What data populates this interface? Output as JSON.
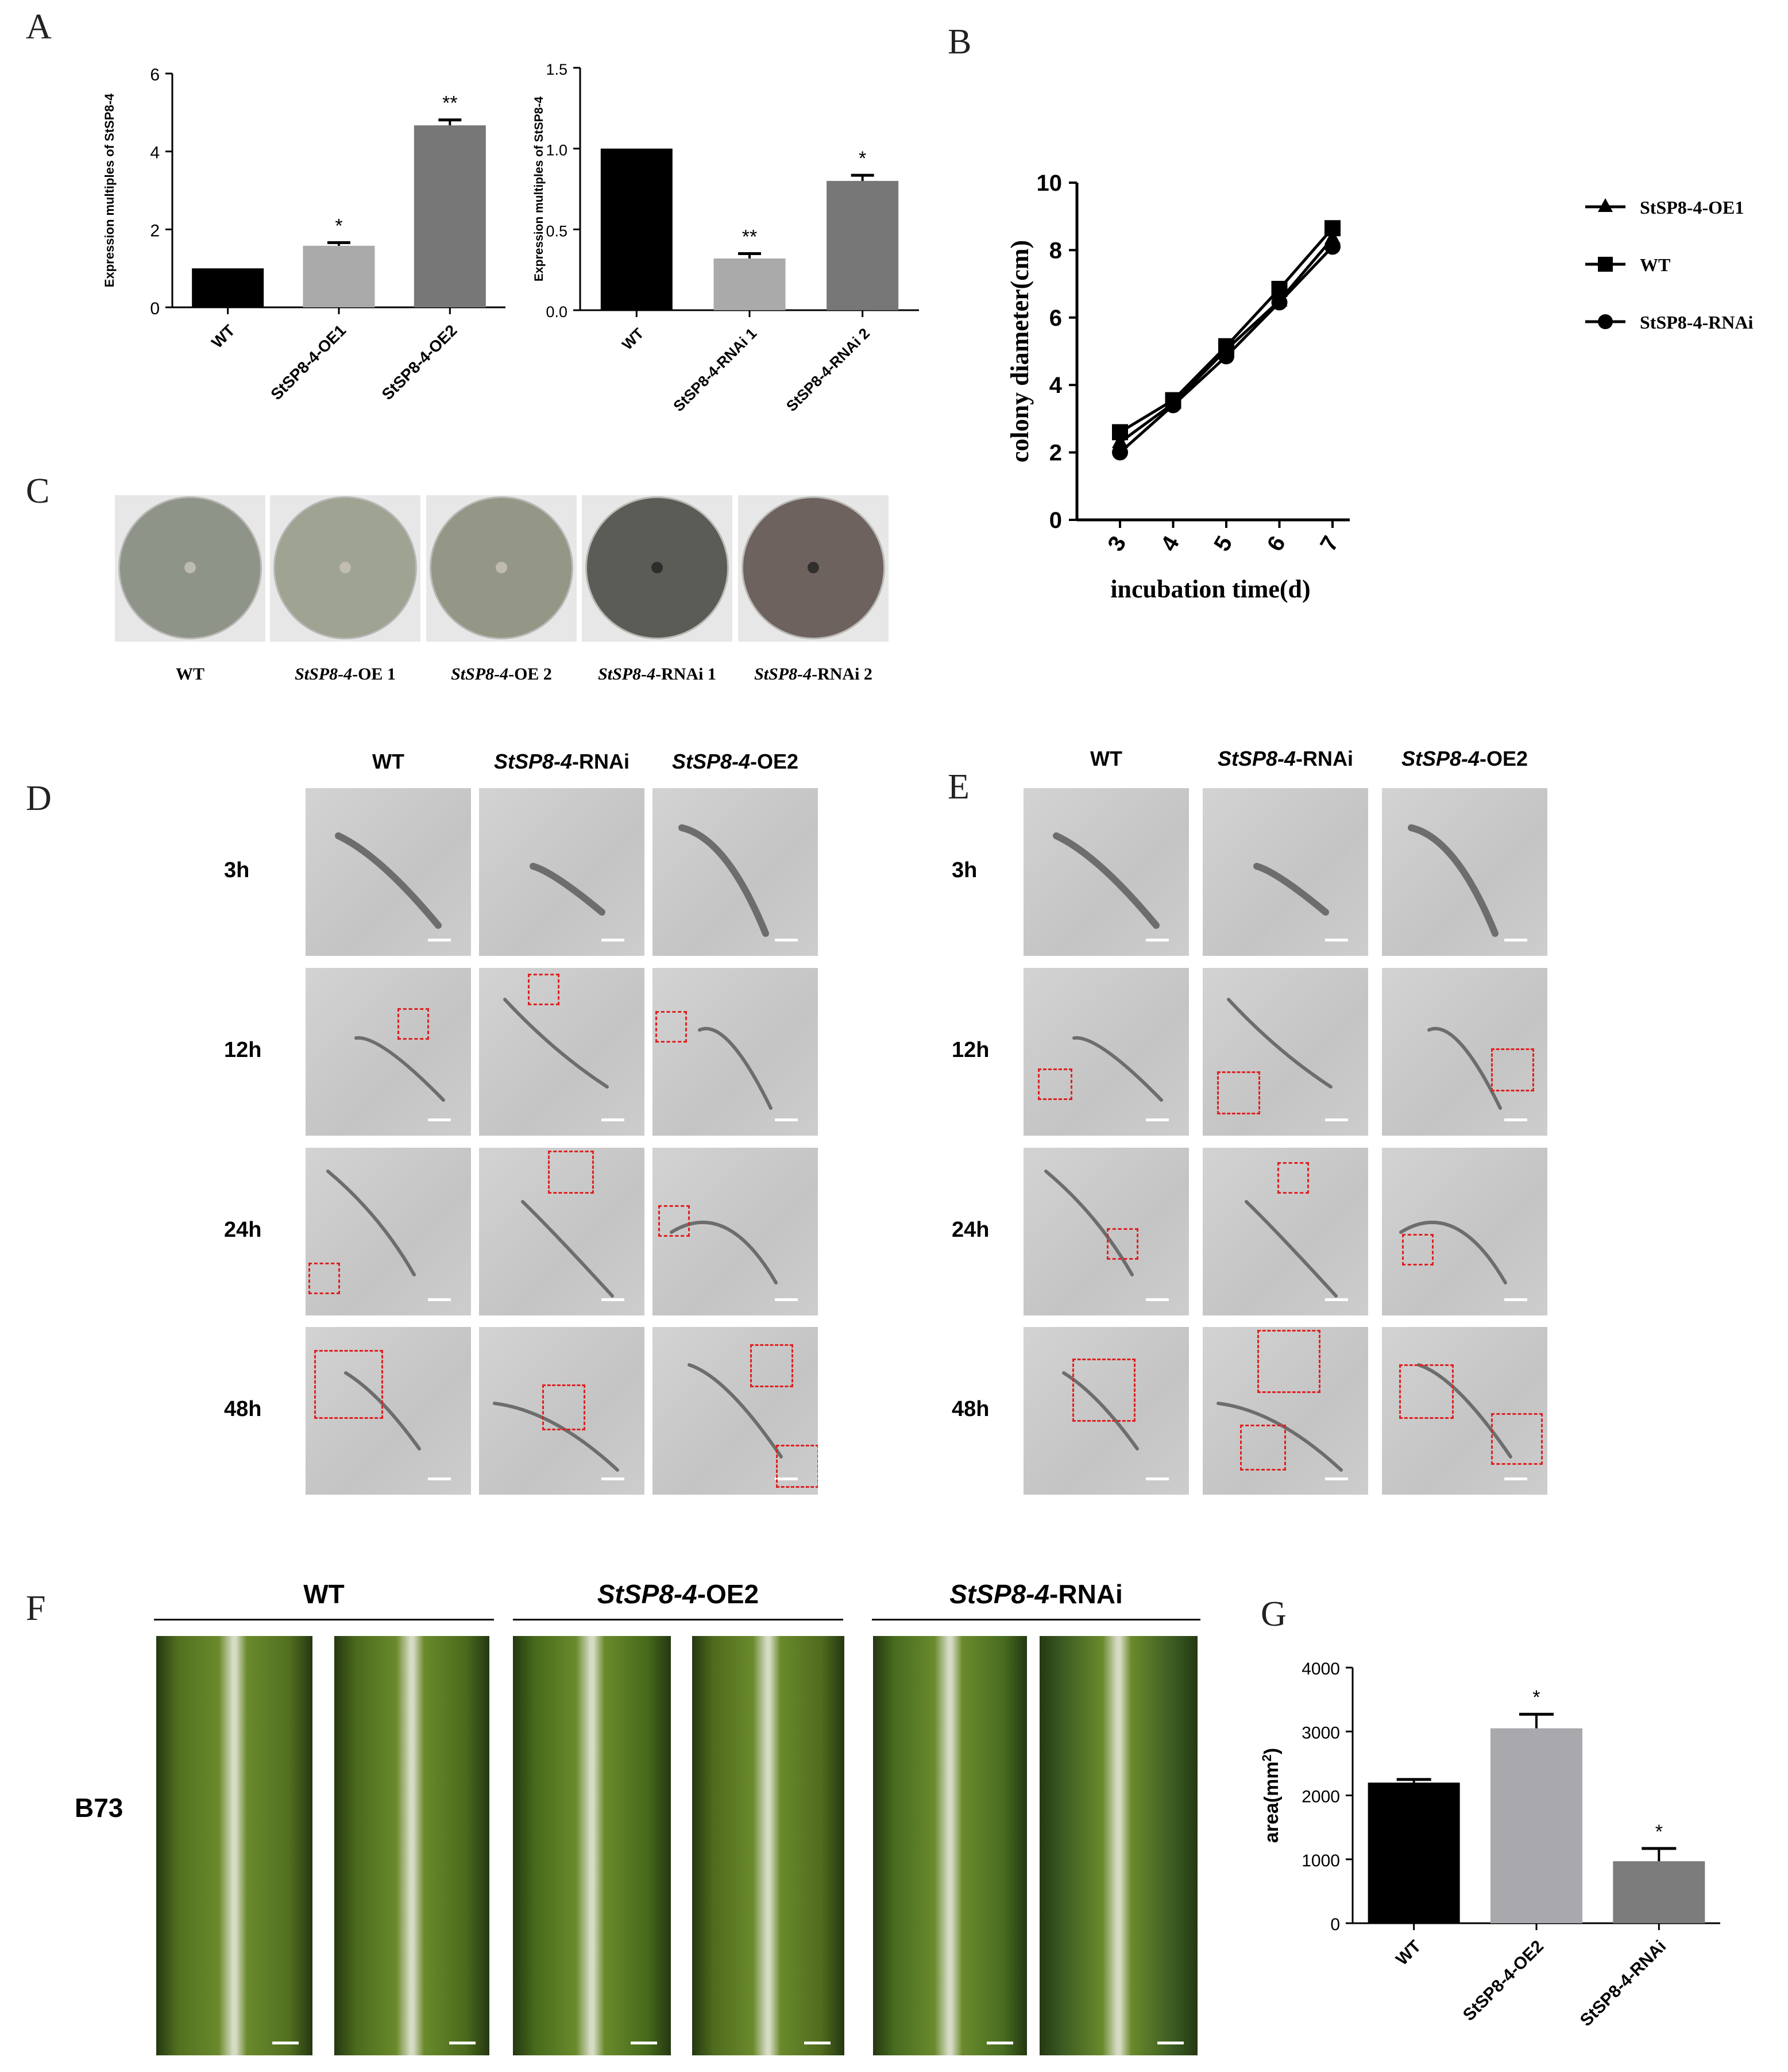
{
  "panel_letters": {
    "A": "A",
    "B": "B",
    "C": "C",
    "D": "D",
    "E": "E",
    "F": "F",
    "G": "G"
  },
  "chart_data": [
    {
      "id": "A-left",
      "type": "bar",
      "ylabel": "Expression multiples of StSP8-4",
      "ylim": [
        0,
        6
      ],
      "yticks": [
        0,
        2,
        4,
        6
      ],
      "categories": [
        "WT",
        "StSP8-4-OE1",
        "StSP8-4-OE2"
      ],
      "values": [
        1.0,
        1.58,
        4.67
      ],
      "errors": [
        0,
        0.08,
        0.14
      ],
      "significance": [
        "",
        "*",
        "**"
      ],
      "colors": [
        "#000000",
        "#aaaaaa",
        "#777777"
      ]
    },
    {
      "id": "A-right",
      "type": "bar",
      "ylabel": "Expression multiples of StSP8-4",
      "ylim": [
        0,
        1.5
      ],
      "yticks": [
        "0.0",
        "0.5",
        "1.0",
        "1.5"
      ],
      "categories": [
        "WT",
        "StSP8-4-RNAi 1",
        "StSP8-4-RNAi 2"
      ],
      "values": [
        1.0,
        0.32,
        0.8
      ],
      "errors": [
        0,
        0.03,
        0.035
      ],
      "significance": [
        "",
        "**",
        "*"
      ],
      "colors": [
        "#000000",
        "#aaaaaa",
        "#777777"
      ]
    },
    {
      "id": "B",
      "type": "line",
      "xlabel": "incubation time(d)",
      "ylabel": "colony diameter(cm)",
      "x": [
        3,
        4,
        5,
        6,
        7
      ],
      "ylim": [
        0,
        10
      ],
      "yticks": [
        0,
        2,
        4,
        6,
        8,
        10
      ],
      "series": [
        {
          "name": "StSP8-4-OE1",
          "marker": "triangle",
          "values": [
            2.3,
            3.45,
            5.05,
            6.5,
            8.35
          ]
        },
        {
          "name": "WT",
          "marker": "square",
          "values": [
            2.6,
            3.55,
            5.15,
            6.85,
            8.65
          ]
        },
        {
          "name": "StSP8-4-RNAi",
          "marker": "circle",
          "values": [
            2.0,
            3.4,
            4.85,
            6.45,
            8.1
          ]
        }
      ],
      "legend": "right"
    },
    {
      "id": "G",
      "type": "bar",
      "ylabel": "area(mm²)",
      "ylabel_base": "area(mm",
      "ylabel_sup": "2",
      "ylabel_end": ")",
      "ylim": [
        0,
        4000
      ],
      "yticks": [
        0,
        1000,
        2000,
        3000,
        4000
      ],
      "categories": [
        "WT",
        "StSP8-4-OE2",
        "StSP8-4-RNAi"
      ],
      "values": [
        2200,
        3050,
        970
      ],
      "errors": [
        50,
        220,
        200
      ],
      "significance": [
        "",
        "*",
        "*"
      ],
      "colors": [
        "#000000",
        "#a9a9ad",
        "#7c7c7c"
      ]
    }
  ],
  "panel_c": {
    "captions": [
      {
        "italic": "",
        "rest": "WT"
      },
      {
        "italic": "StSP8-4",
        "rest": "-OE 1"
      },
      {
        "italic": "StSP8-4",
        "rest": "-OE 2"
      },
      {
        "italic": "StSP8-4",
        "rest": "-RNAi 1"
      },
      {
        "italic": "StSP8-4",
        "rest": "-RNAi 2"
      }
    ],
    "dish_colors": [
      "#8f9488",
      "#9ea392",
      "#959786",
      "#5a5c55",
      "#6e625e"
    ]
  },
  "panel_d": {
    "columns": [
      {
        "italic": "",
        "rest": "WT"
      },
      {
        "italic": "StSP8-4",
        "rest": "-RNAi"
      },
      {
        "italic": "StSP8-4",
        "rest": "-OE2"
      }
    ],
    "rows": [
      "3h",
      "12h",
      "24h",
      "48h"
    ]
  },
  "panel_e": {
    "columns": [
      {
        "italic": "",
        "rest": "WT"
      },
      {
        "italic": "StSP8-4",
        "rest": "-RNAi"
      },
      {
        "italic": "StSP8-4",
        "rest": "-OE2"
      }
    ],
    "rows": [
      "3h",
      "12h",
      "24h",
      "48h"
    ]
  },
  "panel_f": {
    "groups": [
      {
        "italic": "",
        "rest": "WT"
      },
      {
        "italic": "StSP8-4",
        "rest": "-OE2"
      },
      {
        "italic": "StSP8-4",
        "rest": "-RNAi"
      }
    ],
    "row_label": "B73",
    "leaf_colors": [
      "#52701f",
      "#4a6a1c",
      "#466a1a",
      "#4f6b1d",
      "#476c1f",
      "#3a5a22"
    ]
  }
}
